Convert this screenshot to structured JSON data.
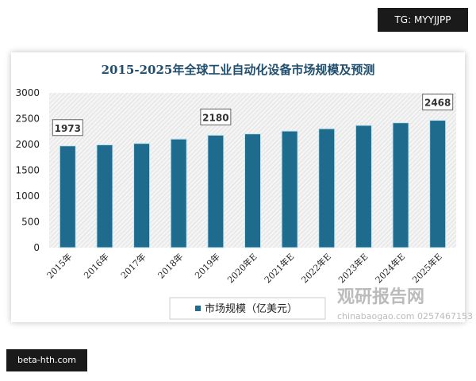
{
  "badge_top": "TG: MYYJJPP",
  "badge_bottom": "beta-hth.com",
  "watermark": {
    "name": "观研报告网",
    "site": "chinabaogao.com",
    "extra": "0257467153"
  },
  "chart_data": {
    "type": "bar",
    "title": "2015-2025年全球工业自动化设备市场规模及预测",
    "categories": [
      "2015年",
      "2016年",
      "2017年",
      "2018年",
      "2019年",
      "2020年E",
      "2021年E",
      "2022年E",
      "2023年E",
      "2024年E",
      "2025年E"
    ],
    "series": [
      {
        "name": "市场规模（亿美元）",
        "values": [
          1973,
          1993,
          2020,
          2105,
          2180,
          2205,
          2260,
          2305,
          2370,
          2420,
          2468
        ]
      }
    ],
    "data_labels": {
      "0": "1973",
      "4": "2180",
      "10": "2468"
    },
    "yticks": [
      0,
      500,
      1000,
      1500,
      2000,
      2500,
      3000
    ],
    "ylim": [
      0,
      3000
    ],
    "legend": "bottom",
    "color": "#1f6b8e"
  }
}
